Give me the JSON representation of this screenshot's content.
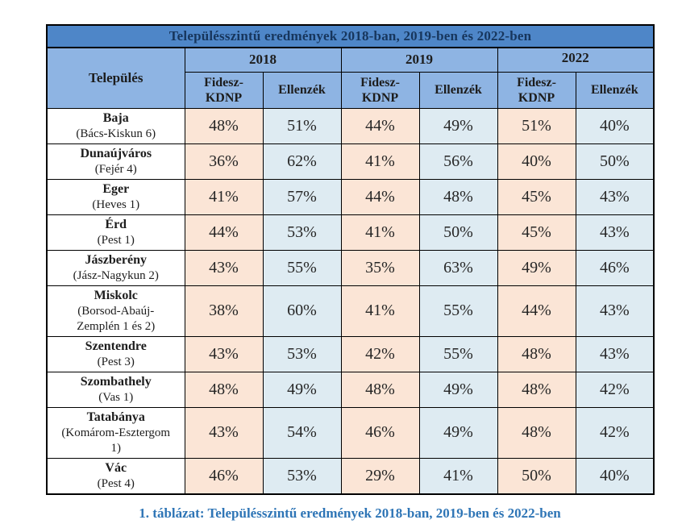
{
  "chart_data": {
    "type": "table",
    "title": "Településszintű eredmények 2018-ban, 2019-ben és 2022-ben",
    "settlement_header": "Település",
    "year_groups": [
      {
        "year": "2018",
        "subcolumns": [
          "Fidesz-KDNP",
          "Ellenzék"
        ]
      },
      {
        "year": "2019",
        "subcolumns": [
          "Fidesz-KDNP",
          "Ellenzék"
        ]
      },
      {
        "year": "2022",
        "subcolumns": [
          "Fidesz-KDNP",
          "Ellenzék"
        ]
      }
    ],
    "rows": [
      {
        "settlement": "Baja",
        "district": "(Bács-Kiskun 6)",
        "values": [
          "48%",
          "51%",
          "44%",
          "49%",
          "51%",
          "40%"
        ]
      },
      {
        "settlement": "Dunaújváros",
        "district": "(Fejér 4)",
        "values": [
          "36%",
          "62%",
          "41%",
          "56%",
          "40%",
          "50%"
        ]
      },
      {
        "settlement": "Eger",
        "district": "(Heves 1)",
        "values": [
          "41%",
          "57%",
          "44%",
          "48%",
          "45%",
          "43%"
        ]
      },
      {
        "settlement": "Érd",
        "district": "(Pest 1)",
        "values": [
          "44%",
          "53%",
          "41%",
          "50%",
          "45%",
          "43%"
        ]
      },
      {
        "settlement": "Jászberény",
        "district": "(Jász-Nagykun 2)",
        "values": [
          "43%",
          "55%",
          "35%",
          "63%",
          "49%",
          "46%"
        ]
      },
      {
        "settlement": "Miskolc",
        "district": "(Borsod-Abaúj-Zemplén 1 és 2)",
        "values": [
          "38%",
          "60%",
          "41%",
          "55%",
          "44%",
          "43%"
        ]
      },
      {
        "settlement": "Szentendre",
        "district": "(Pest 3)",
        "values": [
          "43%",
          "53%",
          "42%",
          "55%",
          "48%",
          "43%"
        ]
      },
      {
        "settlement": "Szombathely",
        "district": "(Vas 1)",
        "values": [
          "48%",
          "49%",
          "48%",
          "49%",
          "48%",
          "42%"
        ]
      },
      {
        "settlement": "Tatabánya",
        "district": "(Komárom-Esztergom 1)",
        "values": [
          "43%",
          "54%",
          "46%",
          "49%",
          "48%",
          "42%"
        ]
      },
      {
        "settlement": "Vác",
        "district": "(Pest 4)",
        "values": [
          "46%",
          "53%",
          "29%",
          "41%",
          "50%",
          "40%"
        ]
      }
    ],
    "caption": "1. táblázat: Településszintű eredmények 2018-ban, 2019-ben és 2022-ben",
    "colors": {
      "title_bg": "#4e86c8",
      "title_text": "#17365d",
      "header_bg": "#8eb4e3",
      "fidesz_cell_bg": "#fbe5d6",
      "ellenzek_cell_bg": "#deebf2",
      "settlement_cell_bg": "#ffffff",
      "border": "#000000",
      "caption_text": "#2e75b6"
    },
    "layout": {
      "grid": "on",
      "legend": "none"
    }
  }
}
